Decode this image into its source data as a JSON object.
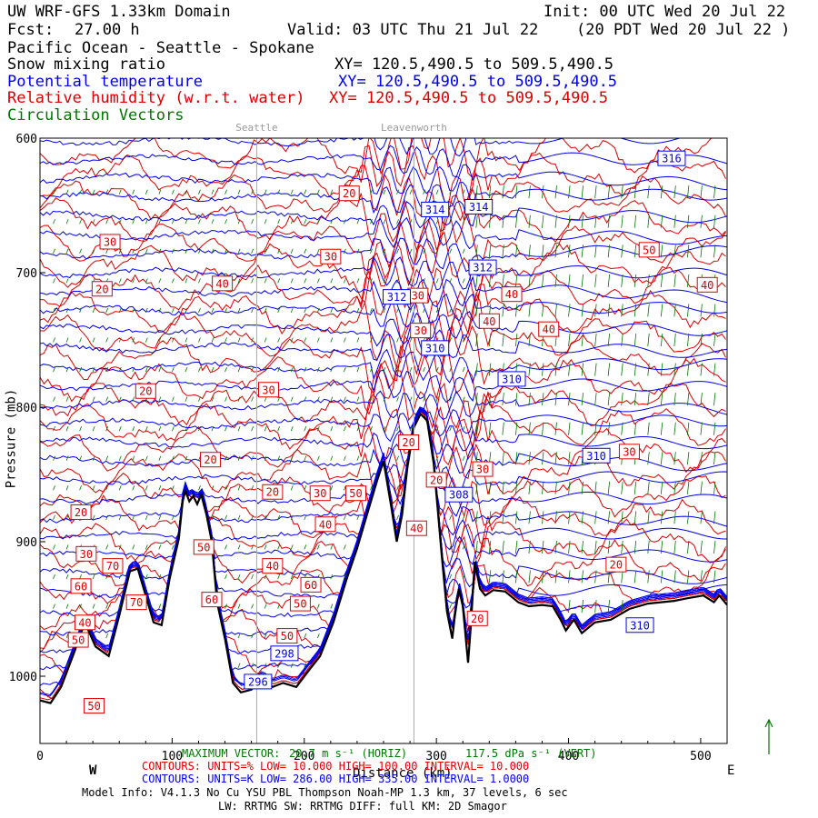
{
  "header": {
    "title": "UW WRF-GFS 1.33km Domain",
    "init": "Init: 00 UTC Wed 20 Jul 22",
    "fcst_label": "Fcst:",
    "fcst_value": "27.00 h",
    "valid": "Valid: 03 UTC Thu 21 Jul 22",
    "valid_local": "(20 PDT Wed 20 Jul 22  )",
    "region": "Pacific Ocean - Seattle - Spokane",
    "fields": [
      {
        "name": "Snow mixing ratio",
        "xy": "XY= 120.5,490.5 to 509.5,490.5"
      },
      {
        "name": "Potential temperature",
        "xy": "XY= 120.5,490.5 to 509.5,490.5"
      },
      {
        "name": "Relative humidity (w.r.t. water)",
        "xy": "XY= 120.5,490.5 to 509.5,490.5"
      },
      {
        "name": "Circulation Vectors",
        "xy": ""
      }
    ]
  },
  "colors": {
    "black": "#000000",
    "theta": "#0000ee",
    "rh": "#dd0000",
    "vectors": "#007700",
    "marker": "#aaaaaa"
  },
  "chart_data": {
    "type": "cross-section contour",
    "title": "UW WRF-GFS 1.33km Domain",
    "xlabel": "Distance (km)",
    "ylabel": "Pressure (mb)",
    "xlim": [
      0,
      520
    ],
    "ylim": [
      1050,
      600
    ],
    "x_ticks": [
      0,
      100,
      200,
      300,
      400,
      500
    ],
    "y_ticks": [
      600,
      700,
      800,
      900,
      1000
    ],
    "y_tick_labels": [
      "600",
      "700",
      "800",
      "900",
      "1000"
    ],
    "direction_labels": {
      "west": "W",
      "east": "E"
    },
    "location_markers": [
      {
        "name": "Seattle",
        "km": 164
      },
      {
        "name": "Leavenworth",
        "km": 283
      }
    ],
    "terrain": [
      [
        0,
        1018
      ],
      [
        8,
        1020
      ],
      [
        16,
        1008
      ],
      [
        26,
        982
      ],
      [
        34,
        960
      ],
      [
        42,
        978
      ],
      [
        52,
        985
      ],
      [
        60,
        955
      ],
      [
        68,
        922
      ],
      [
        74,
        920
      ],
      [
        80,
        940
      ],
      [
        86,
        960
      ],
      [
        92,
        962
      ],
      [
        98,
        928
      ],
      [
        105,
        898
      ],
      [
        108,
        870
      ],
      [
        110,
        862
      ],
      [
        113,
        870
      ],
      [
        116,
        866
      ],
      [
        119,
        872
      ],
      [
        122,
        865
      ],
      [
        126,
        880
      ],
      [
        130,
        900
      ],
      [
        134,
        945
      ],
      [
        140,
        972
      ],
      [
        146,
        1005
      ],
      [
        152,
        1012
      ],
      [
        160,
        1010
      ],
      [
        168,
        1002
      ],
      [
        176,
        1008
      ],
      [
        184,
        1005
      ],
      [
        194,
        1008
      ],
      [
        204,
        995
      ],
      [
        212,
        985
      ],
      [
        222,
        960
      ],
      [
        232,
        928
      ],
      [
        240,
        905
      ],
      [
        248,
        878
      ],
      [
        255,
        855
      ],
      [
        260,
        840
      ],
      [
        266,
        875
      ],
      [
        270,
        900
      ],
      [
        274,
        880
      ],
      [
        278,
        845
      ],
      [
        283,
        815
      ],
      [
        288,
        805
      ],
      [
        293,
        810
      ],
      [
        298,
        842
      ],
      [
        304,
        910
      ],
      [
        308,
        952
      ],
      [
        312,
        972
      ],
      [
        314,
        955
      ],
      [
        317,
        935
      ],
      [
        320,
        948
      ],
      [
        324,
        990
      ],
      [
        326,
        963
      ],
      [
        329,
        915
      ],
      [
        333,
        935
      ],
      [
        337,
        940
      ],
      [
        343,
        936
      ],
      [
        352,
        937
      ],
      [
        362,
        945
      ],
      [
        370,
        948
      ],
      [
        380,
        947
      ],
      [
        388,
        948
      ],
      [
        394,
        958
      ],
      [
        398,
        966
      ],
      [
        404,
        958
      ],
      [
        410,
        968
      ],
      [
        420,
        960
      ],
      [
        432,
        958
      ],
      [
        446,
        950
      ],
      [
        460,
        946
      ],
      [
        480,
        944
      ],
      [
        490,
        942
      ],
      [
        502,
        940
      ],
      [
        510,
        945
      ],
      [
        514,
        940
      ],
      [
        520,
        947
      ]
    ],
    "theta_contours": {
      "units": "K",
      "low": 286.0,
      "high": 335.0,
      "interval": 1.0,
      "labels": [
        {
          "value": 316,
          "km": 478,
          "p": 615
        },
        {
          "value": 314,
          "km": 299,
          "p": 653
        },
        {
          "value": 314,
          "km": 332,
          "p": 651
        },
        {
          "value": 312,
          "km": 335,
          "p": 696
        },
        {
          "value": 312,
          "km": 270,
          "p": 718
        },
        {
          "value": 310,
          "km": 299,
          "p": 756
        },
        {
          "value": 310,
          "km": 357,
          "p": 779
        },
        {
          "value": 310,
          "km": 421,
          "p": 836
        },
        {
          "value": 308,
          "km": 317,
          "p": 865
        },
        {
          "value": 310,
          "km": 454,
          "p": 962
        },
        {
          "value": 298,
          "km": 185,
          "p": 983
        },
        {
          "value": 296,
          "km": 165,
          "p": 1004
        }
      ]
    },
    "rh_contours": {
      "units": "%",
      "low": 10.0,
      "high": 100.0,
      "interval": 10.0,
      "labels": [
        {
          "value": 20,
          "km": 234,
          "p": 641
        },
        {
          "value": 30,
          "km": 53,
          "p": 677
        },
        {
          "value": 30,
          "km": 220,
          "p": 688
        },
        {
          "value": 50,
          "km": 461,
          "p": 683
        },
        {
          "value": 20,
          "km": 47,
          "p": 712
        },
        {
          "value": 40,
          "km": 138,
          "p": 708
        },
        {
          "value": 40,
          "km": 505,
          "p": 709
        },
        {
          "value": 30,
          "km": 286,
          "p": 717
        },
        {
          "value": 40,
          "km": 357,
          "p": 716
        },
        {
          "value": 40,
          "km": 340,
          "p": 736
        },
        {
          "value": 30,
          "km": 288,
          "p": 743
        },
        {
          "value": 40,
          "km": 385,
          "p": 742
        },
        {
          "value": 20,
          "km": 80,
          "p": 788
        },
        {
          "value": 30,
          "km": 173,
          "p": 787
        },
        {
          "value": 20,
          "km": 129,
          "p": 839
        },
        {
          "value": 30,
          "km": 335,
          "p": 846
        },
        {
          "value": 30,
          "km": 446,
          "p": 833
        },
        {
          "value": 20,
          "km": 279,
          "p": 826
        },
        {
          "value": 20,
          "km": 300,
          "p": 854
        },
        {
          "value": 30,
          "km": 212,
          "p": 864
        },
        {
          "value": 20,
          "km": 176,
          "p": 863
        },
        {
          "value": 50,
          "km": 239,
          "p": 864
        },
        {
          "value": 20,
          "km": 31,
          "p": 878
        },
        {
          "value": 40,
          "km": 216,
          "p": 887
        },
        {
          "value": 40,
          "km": 285,
          "p": 890
        },
        {
          "value": 30,
          "km": 35,
          "p": 909
        },
        {
          "value": 70,
          "km": 55,
          "p": 918
        },
        {
          "value": 50,
          "km": 124,
          "p": 904
        },
        {
          "value": 40,
          "km": 176,
          "p": 918
        },
        {
          "value": 20,
          "km": 436,
          "p": 917
        },
        {
          "value": 60,
          "km": 31,
          "p": 933
        },
        {
          "value": 60,
          "km": 205,
          "p": 932
        },
        {
          "value": 70,
          "km": 73,
          "p": 945
        },
        {
          "value": 60,
          "km": 130,
          "p": 943
        },
        {
          "value": 50,
          "km": 197,
          "p": 946
        },
        {
          "value": 40,
          "km": 34,
          "p": 960
        },
        {
          "value": 20,
          "km": 331,
          "p": 957
        },
        {
          "value": 50,
          "km": 187,
          "p": 970
        },
        {
          "value": 50,
          "km": 29,
          "p": 973
        },
        {
          "value": 50,
          "km": 41,
          "p": 1022
        }
      ]
    },
    "maximum_vector": {
      "horiz": "20.7 m s-1 (HORIZ)",
      "vert": "117.5 dPa s-1 (VERT)"
    }
  },
  "footer": {
    "max_vector_label": "MAXIMUM VECTOR:",
    "max_vector_horiz": "20.7 m s⁻¹ (HORIZ)",
    "max_vector_vert": "117.5 dPa s⁻¹ (VERT)",
    "rh_line": "CONTOURS:  UNITS=%  LOW=  10.000        HIGH=  100.00        INTERVAL=   10.000",
    "theta_line": "CONTOURS:  UNITS=K  LOW=  286.00        HIGH=  335.00        INTERVAL=   1.0000",
    "model_info": "Model Info: V4.1.3    No Cu   YSU PBL  Thompson     Noah-MP   1.3 km,  37 levels,    6 sec",
    "physics": "LW: RRTMG SW: RRTMG    DIFF: full    KM: 2D Smagor"
  }
}
